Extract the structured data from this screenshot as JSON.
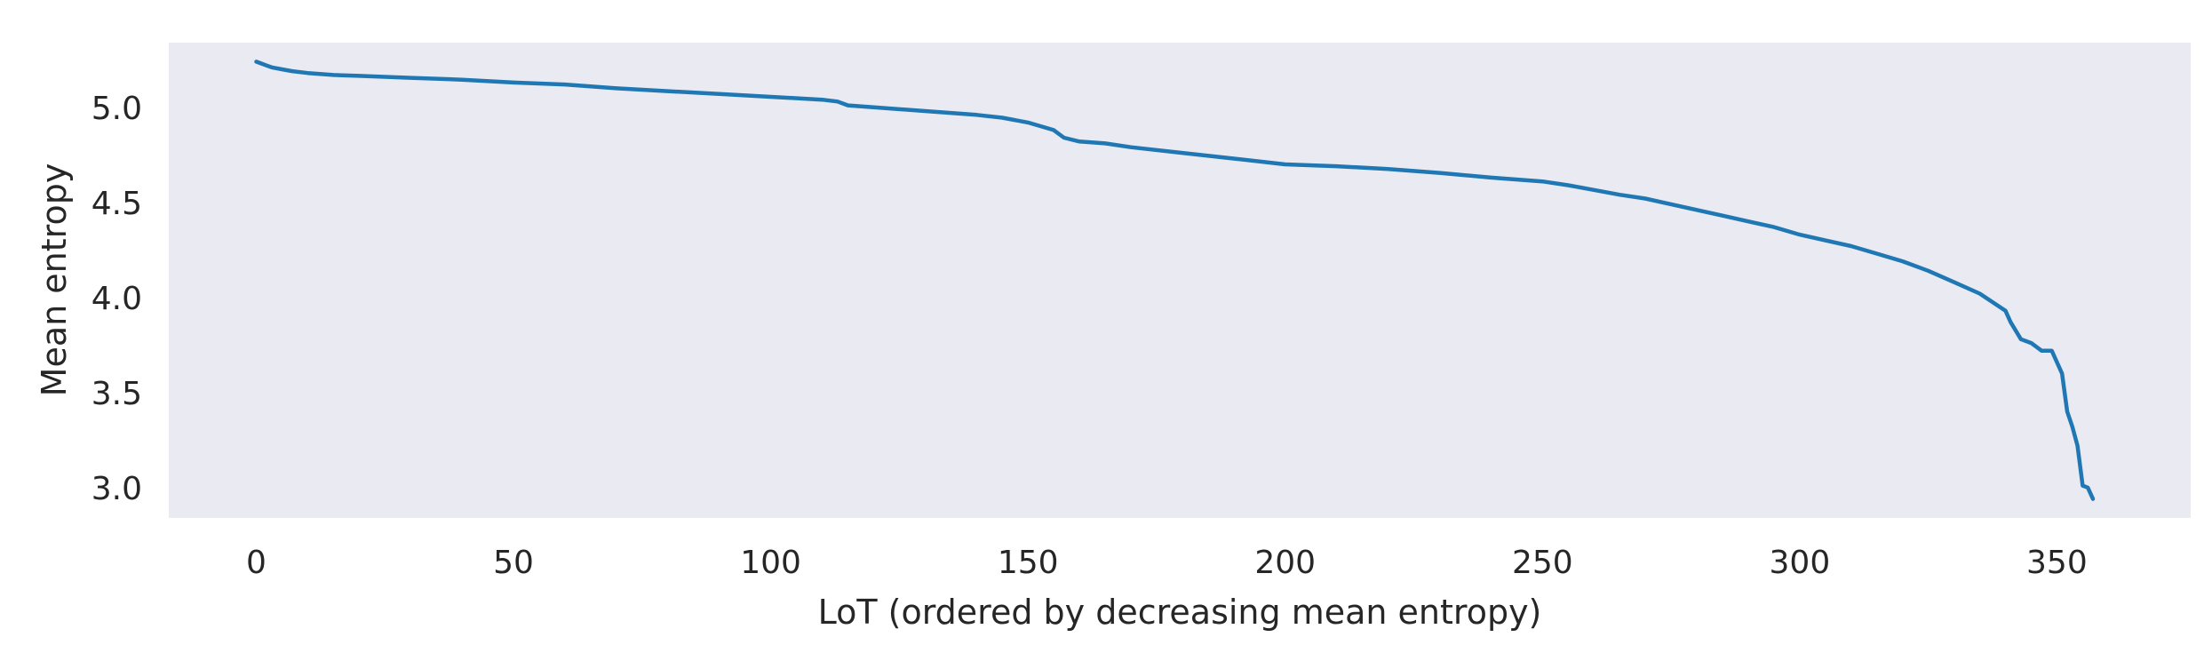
{
  "chart_data": {
    "type": "line",
    "xlabel": "LoT (ordered by decreasing mean entropy)",
    "ylabel": "Mean entropy",
    "xlim": [
      -17,
      376
    ],
    "ylim": [
      2.84,
      5.34
    ],
    "xticks": [
      0,
      50,
      100,
      150,
      200,
      250,
      300,
      350
    ],
    "xtick_labels": [
      "0",
      "50",
      "100",
      "150",
      "200",
      "250",
      "300",
      "350"
    ],
    "yticks": [
      3.0,
      3.5,
      4.0,
      4.5,
      5.0
    ],
    "ytick_labels": [
      "3.0",
      "3.5",
      "4.0",
      "4.5",
      "5.0"
    ],
    "grid": false,
    "legend": "none",
    "colors": {
      "background": "#eaeaf2",
      "line": "#1f77b4",
      "text": "#262626"
    },
    "series": [
      {
        "x": [
          0,
          1,
          2,
          3,
          5,
          7,
          10,
          15,
          20,
          30,
          40,
          50,
          60,
          65,
          70,
          80,
          90,
          100,
          110,
          113,
          115,
          120,
          130,
          140,
          145,
          150,
          155,
          157,
          160,
          165,
          170,
          180,
          190,
          200,
          210,
          220,
          230,
          240,
          250,
          255,
          260,
          265,
          270,
          275,
          280,
          285,
          290,
          295,
          300,
          305,
          310,
          315,
          320,
          325,
          330,
          335,
          340,
          341,
          343,
          345,
          347,
          349,
          351,
          352,
          353,
          354,
          355,
          356,
          357
        ],
        "y": [
          5.24,
          5.23,
          5.22,
          5.21,
          5.2,
          5.19,
          5.18,
          5.17,
          5.165,
          5.155,
          5.145,
          5.13,
          5.12,
          5.11,
          5.1,
          5.085,
          5.07,
          5.055,
          5.04,
          5.03,
          5.01,
          5.0,
          4.98,
          4.96,
          4.945,
          4.92,
          4.88,
          4.84,
          4.82,
          4.81,
          4.79,
          4.76,
          4.73,
          4.7,
          4.69,
          4.675,
          4.655,
          4.63,
          4.61,
          4.59,
          4.565,
          4.54,
          4.52,
          4.49,
          4.46,
          4.43,
          4.4,
          4.37,
          4.33,
          4.3,
          4.27,
          4.23,
          4.19,
          4.14,
          4.08,
          4.02,
          3.93,
          3.87,
          3.78,
          3.76,
          3.72,
          3.72,
          3.6,
          3.4,
          3.32,
          3.22,
          3.01,
          3.0,
          2.94
        ]
      }
    ]
  }
}
